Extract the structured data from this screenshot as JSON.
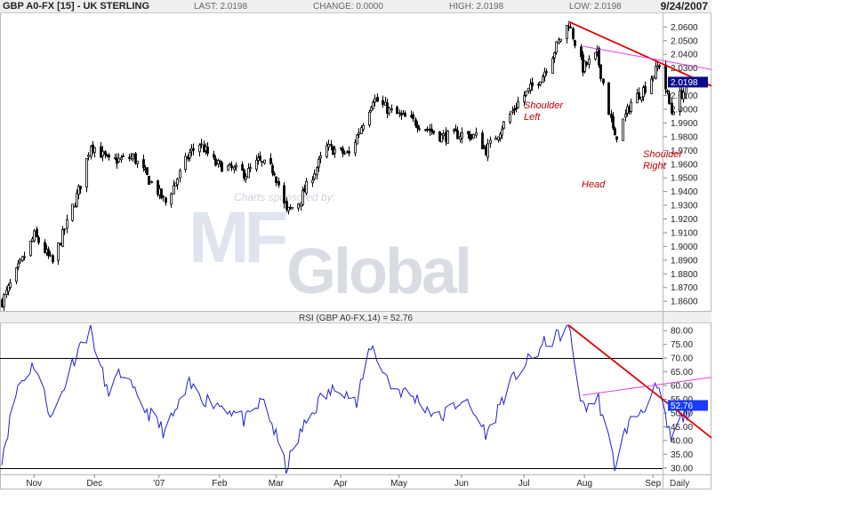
{
  "header": {
    "symbol": "GBP A0-FX [15] - UK STERLING",
    "last": "LAST: 2.0198",
    "change": "CHANGE: 0.0000",
    "high": "HIGH: 2.0198",
    "low": "LOW: 2.0198",
    "date": "9/24/2007"
  },
  "colors": {
    "candles": "#000000",
    "rsi_line": "#1f1fd0",
    "trendline_red": "#e00000",
    "trendline_magenta": "#e040e0",
    "last_box": "#0a0a8a",
    "rsi_box": "#1a3cff",
    "annotation": "#c00000"
  },
  "watermark": {
    "text_1": "Charts sponsored by:",
    "logo_word": "Global",
    "logo_mark": "MF"
  },
  "chart_data": [
    {
      "type": "candlestick",
      "title": "GBP A0-FX [15] - UK STERLING",
      "ylim": [
        1.853,
        2.068
      ],
      "y_ticks": [
        "2.0600",
        "2.0500",
        "2.0400",
        "2.0300",
        "2.0198",
        "2.0100",
        "2.0000",
        "1.9900",
        "1.9800",
        "1.9700",
        "1.9600",
        "1.9500",
        "1.9400",
        "1.9300",
        "1.9200",
        "1.9100",
        "1.9000",
        "1.8900",
        "1.8800",
        "1.8700",
        "1.8600"
      ],
      "last_value_label": "2.0198",
      "trend_anchors": [
        {
          "date": "2006-10-16",
          "close": 1.86
        },
        {
          "date": "2006-11-01",
          "close": 1.908
        },
        {
          "date": "2006-11-10",
          "close": 1.888
        },
        {
          "date": "2006-11-24",
          "close": 1.945
        },
        {
          "date": "2006-11-29",
          "close": 1.975
        },
        {
          "date": "2006-12-08",
          "close": 1.962
        },
        {
          "date": "2006-12-20",
          "close": 1.965
        },
        {
          "date": "2007-01-05",
          "close": 1.932
        },
        {
          "date": "2007-01-17",
          "close": 1.968
        },
        {
          "date": "2007-01-22",
          "close": 1.975
        },
        {
          "date": "2007-01-30",
          "close": 1.96
        },
        {
          "date": "2007-02-14",
          "close": 1.953
        },
        {
          "date": "2007-02-20",
          "close": 1.962
        },
        {
          "date": "2007-02-28",
          "close": 1.955
        },
        {
          "date": "2007-03-06",
          "close": 1.925
        },
        {
          "date": "2007-03-12",
          "close": 1.932
        },
        {
          "date": "2007-03-26",
          "close": 1.972
        },
        {
          "date": "2007-04-06",
          "close": 1.967
        },
        {
          "date": "2007-04-18",
          "close": 2.008
        },
        {
          "date": "2007-04-27",
          "close": 1.998
        },
        {
          "date": "2007-05-10",
          "close": 1.99
        },
        {
          "date": "2007-05-22",
          "close": 1.98
        },
        {
          "date": "2007-06-01",
          "close": 1.982
        },
        {
          "date": "2007-06-08",
          "close": 1.98
        },
        {
          "date": "2007-06-13",
          "close": 1.97
        },
        {
          "date": "2007-06-20",
          "close": 1.985
        },
        {
          "date": "2007-06-29",
          "close": 2.005
        },
        {
          "date": "2007-07-11",
          "close": 2.025
        },
        {
          "date": "2007-07-20",
          "close": 2.052
        },
        {
          "date": "2007-07-24",
          "close": 2.063
        },
        {
          "date": "2007-07-31",
          "close": 2.03
        },
        {
          "date": "2007-08-07",
          "close": 2.04
        },
        {
          "date": "2007-08-16",
          "close": 1.978
        },
        {
          "date": "2007-08-24",
          "close": 2.005
        },
        {
          "date": "2007-08-31",
          "close": 2.016
        },
        {
          "date": "2007-09-07",
          "close": 2.033
        },
        {
          "date": "2007-09-13",
          "close": 1.998
        },
        {
          "date": "2007-09-17",
          "close": 2.01
        },
        {
          "date": "2007-09-24",
          "close": 2.0198
        }
      ],
      "annotations": [
        {
          "text_1": "Shoulder",
          "text_2": "Left"
        },
        {
          "text_1": "Head"
        },
        {
          "text_1": "Shoulder",
          "text_2": "Right"
        }
      ]
    },
    {
      "type": "line",
      "title": "RSI (GBP A0-FX,14) = 52.76",
      "ylim": [
        28,
        82
      ],
      "y_ticks": [
        "80.00",
        "75.00",
        "70.00",
        "65.00",
        "60.00",
        "55.00",
        "50.00",
        "45.00",
        "40.00",
        "35.00",
        "30.00"
      ],
      "reference_lines": [
        70,
        30
      ],
      "last_value_label": "52.76",
      "anchors": [
        {
          "date": "2006-10-16",
          "value": 34
        },
        {
          "date": "2006-10-24",
          "value": 60
        },
        {
          "date": "2006-11-01",
          "value": 68
        },
        {
          "date": "2006-11-10",
          "value": 48
        },
        {
          "date": "2006-11-22",
          "value": 72
        },
        {
          "date": "2006-11-29",
          "value": 81
        },
        {
          "date": "2006-12-07",
          "value": 58
        },
        {
          "date": "2006-12-15",
          "value": 65
        },
        {
          "date": "2006-12-22",
          "value": 55
        },
        {
          "date": "2007-01-05",
          "value": 43
        },
        {
          "date": "2007-01-17",
          "value": 60
        },
        {
          "date": "2007-01-25",
          "value": 55
        },
        {
          "date": "2007-02-05",
          "value": 52
        },
        {
          "date": "2007-02-14",
          "value": 47
        },
        {
          "date": "2007-02-23",
          "value": 55
        },
        {
          "date": "2007-03-06",
          "value": 30
        },
        {
          "date": "2007-03-14",
          "value": 44
        },
        {
          "date": "2007-03-23",
          "value": 55
        },
        {
          "date": "2007-04-02",
          "value": 60
        },
        {
          "date": "2007-04-10",
          "value": 53
        },
        {
          "date": "2007-04-17",
          "value": 75
        },
        {
          "date": "2007-04-27",
          "value": 60
        },
        {
          "date": "2007-05-10",
          "value": 55
        },
        {
          "date": "2007-05-21",
          "value": 48
        },
        {
          "date": "2007-06-01",
          "value": 55
        },
        {
          "date": "2007-06-07",
          "value": 50
        },
        {
          "date": "2007-06-14",
          "value": 42
        },
        {
          "date": "2007-06-21",
          "value": 55
        },
        {
          "date": "2007-06-29",
          "value": 65
        },
        {
          "date": "2007-07-06",
          "value": 70
        },
        {
          "date": "2007-07-12",
          "value": 75
        },
        {
          "date": "2007-07-19",
          "value": 78
        },
        {
          "date": "2007-07-24",
          "value": 82
        },
        {
          "date": "2007-07-31",
          "value": 52
        },
        {
          "date": "2007-08-08",
          "value": 55
        },
        {
          "date": "2007-08-16",
          "value": 31
        },
        {
          "date": "2007-08-22",
          "value": 45
        },
        {
          "date": "2007-08-30",
          "value": 52
        },
        {
          "date": "2007-09-06",
          "value": 59
        },
        {
          "date": "2007-09-13",
          "value": 40
        },
        {
          "date": "2007-09-18",
          "value": 48
        },
        {
          "date": "2007-09-24",
          "value": 52.76
        }
      ],
      "trendlines": [
        {
          "color": "red",
          "from": {
            "date": "2007-07-24",
            "value": 82
          },
          "to": {
            "date": "2007-10-03",
            "value": 41
          }
        },
        {
          "color": "magenta",
          "from": {
            "date": "2007-07-31",
            "value": 56.5
          },
          "to": {
            "date": "2007-10-03",
            "value": 63
          }
        }
      ]
    }
  ],
  "x_axis": {
    "labels": [
      {
        "text": "Nov",
        "date": "2006-11-01"
      },
      {
        "text": "Dec",
        "date": "2006-12-01"
      },
      {
        "text": "'07",
        "date": "2007-01-02"
      },
      {
        "text": "Feb",
        "date": "2007-02-01"
      },
      {
        "text": "Mar",
        "date": "2007-03-01"
      },
      {
        "text": "Apr",
        "date": "2007-04-02"
      },
      {
        "text": "May",
        "date": "2007-05-01"
      },
      {
        "text": "Jun",
        "date": "2007-06-01"
      },
      {
        "text": "Jul",
        "date": "2007-07-02"
      },
      {
        "text": "Aug",
        "date": "2007-08-01"
      },
      {
        "text": "Sep",
        "date": "2007-09-04"
      }
    ],
    "period_label": "Daily",
    "start_date": "2006-10-16",
    "end_date": "2007-10-03"
  },
  "price_trendlines": [
    {
      "color": "red",
      "from": {
        "date": "2007-07-24",
        "price": 2.064
      },
      "to": {
        "date": "2007-10-03",
        "price": 2.017
      }
    },
    {
      "color": "magenta",
      "from": {
        "date": "2007-07-31",
        "price": 2.046
      },
      "to": {
        "date": "2007-10-03",
        "price": 2.029
      }
    }
  ]
}
